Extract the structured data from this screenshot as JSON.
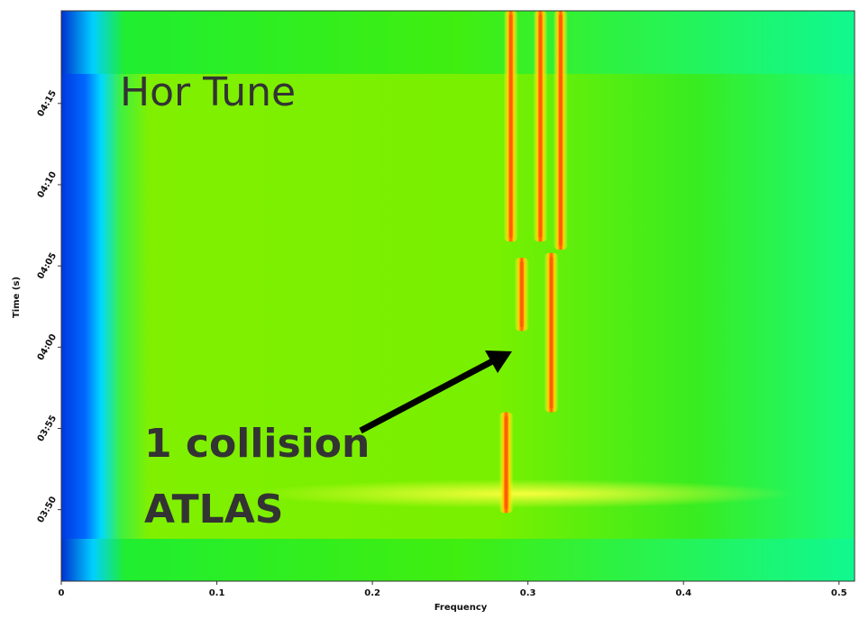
{
  "chart_data": {
    "type": "spectrogram",
    "x_label": "Frequency",
    "y_label": "Time (s)",
    "xlim": [
      0,
      0.51
    ],
    "xticks": [
      0,
      0.1,
      0.2,
      0.3,
      0.4,
      0.5
    ],
    "ylim": [
      225.6,
      260.7
    ],
    "yticks": [
      {
        "value": 230,
        "label": "03:50"
      },
      {
        "value": 235,
        "label": "03:55"
      },
      {
        "value": 240,
        "label": "04:00"
      },
      {
        "value": 245,
        "label": "04:05"
      },
      {
        "value": 250,
        "label": "04:10"
      },
      {
        "value": 255,
        "label": "04:15"
      }
    ],
    "annotations": {
      "title": "Hor Tune",
      "line1": "1 collision",
      "line2": "ATLAS"
    },
    "trace_color": "#ff5a00",
    "traces": [
      {
        "x": 0.289,
        "y": [
          246.5,
          260.7
        ]
      },
      {
        "x": 0.308,
        "y": [
          246.5,
          260.7
        ]
      },
      {
        "x": 0.321,
        "y": [
          246,
          260.7
        ]
      },
      {
        "x": 0.296,
        "y": [
          241,
          245.5
        ]
      },
      {
        "x": 0.315,
        "y": [
          236,
          245.8
        ]
      },
      {
        "x": 0.286,
        "y": [
          229.8,
          236
        ]
      }
    ]
  }
}
